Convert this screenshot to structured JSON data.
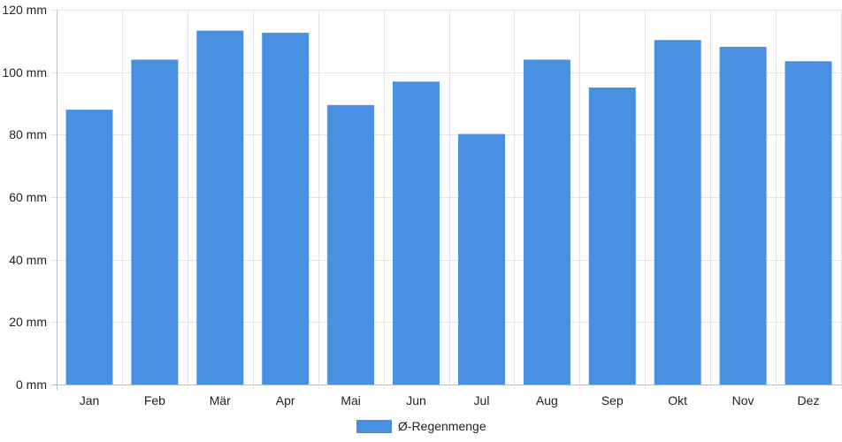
{
  "chart_data": {
    "type": "bar",
    "categories": [
      "Jan",
      "Feb",
      "Mär",
      "Apr",
      "Mai",
      "Jun",
      "Jul",
      "Aug",
      "Sep",
      "Okt",
      "Nov",
      "Dez"
    ],
    "series": [
      {
        "name": "Ø-Regenmenge",
        "color": "#4a90e2",
        "values": [
          88,
          104,
          113.3,
          112.6,
          89.5,
          97,
          80.2,
          104,
          95.1,
          110.3,
          108.1,
          103.5
        ]
      }
    ],
    "y_tick_labels": [
      "0 mm",
      "20 mm",
      "40 mm",
      "60 mm",
      "80 mm",
      "100 mm",
      "120 mm"
    ],
    "y_ticks": [
      0,
      20,
      40,
      60,
      80,
      100,
      120
    ],
    "ylim": [
      0,
      120
    ],
    "grid": true,
    "legend_position": "bottom-center"
  }
}
